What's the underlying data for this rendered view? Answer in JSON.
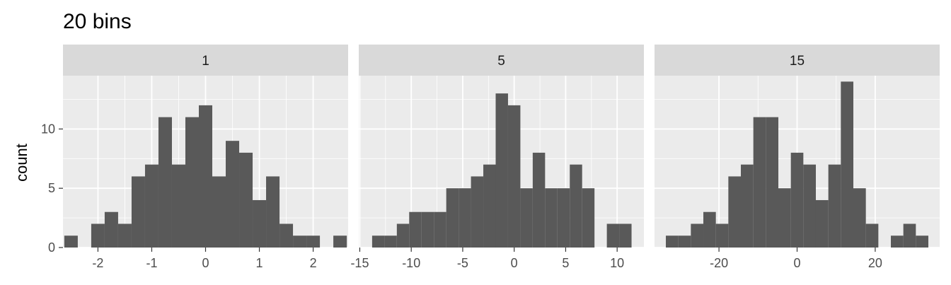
{
  "chart_data": {
    "type": "bar",
    "title": "20 bins",
    "ylabel": "count",
    "xlabel": "",
    "ylim": [
      0,
      14.5
    ],
    "y_ticks": [
      0,
      5,
      10
    ],
    "grid": true,
    "colors": {
      "bar": "#595959",
      "panel": "#ebebeb",
      "strip": "#d9d9d9",
      "grid_major": "#ffffff",
      "axis_text": "#4d4d4d",
      "tick": "#333333"
    },
    "facets": [
      {
        "label": "1",
        "xlim": [
          -2.65,
          2.65
        ],
        "x_ticks": [
          -2,
          -1,
          0,
          1,
          2
        ],
        "bin_width": 0.25,
        "bins": [
          {
            "x": -2.5,
            "count": 1
          },
          {
            "x": -2.25,
            "count": 0
          },
          {
            "x": -2.0,
            "count": 2
          },
          {
            "x": -1.75,
            "count": 3
          },
          {
            "x": -1.5,
            "count": 2
          },
          {
            "x": -1.25,
            "count": 6
          },
          {
            "x": -1.0,
            "count": 7
          },
          {
            "x": -0.75,
            "count": 11
          },
          {
            "x": -0.5,
            "count": 7
          },
          {
            "x": -0.25,
            "count": 11
          },
          {
            "x": 0.0,
            "count": 12
          },
          {
            "x": 0.25,
            "count": 6
          },
          {
            "x": 0.5,
            "count": 9
          },
          {
            "x": 0.75,
            "count": 8
          },
          {
            "x": 1.0,
            "count": 4
          },
          {
            "x": 1.25,
            "count": 6
          },
          {
            "x": 1.5,
            "count": 2
          },
          {
            "x": 1.75,
            "count": 1
          },
          {
            "x": 2.0,
            "count": 1
          },
          {
            "x": 2.25,
            "count": 0
          },
          {
            "x": 2.5,
            "count": 1
          }
        ]
      },
      {
        "label": "5",
        "xlim": [
          -15.1,
          12.6
        ],
        "x_ticks": [
          -15,
          -10,
          -5,
          0,
          5,
          10
        ],
        "bin_width": 1.2,
        "bins": [
          {
            "x": -13.2,
            "count": 1
          },
          {
            "x": -12.0,
            "count": 1
          },
          {
            "x": -10.8,
            "count": 2
          },
          {
            "x": -9.6,
            "count": 3
          },
          {
            "x": -8.4,
            "count": 3
          },
          {
            "x": -7.2,
            "count": 3
          },
          {
            "x": -6.0,
            "count": 5
          },
          {
            "x": -4.8,
            "count": 5
          },
          {
            "x": -3.6,
            "count": 6
          },
          {
            "x": -2.4,
            "count": 7
          },
          {
            "x": -1.2,
            "count": 13
          },
          {
            "x": 0.0,
            "count": 12
          },
          {
            "x": 1.2,
            "count": 5
          },
          {
            "x": 2.4,
            "count": 8
          },
          {
            "x": 3.6,
            "count": 5
          },
          {
            "x": 4.8,
            "count": 5
          },
          {
            "x": 6.0,
            "count": 7
          },
          {
            "x": 7.2,
            "count": 5
          },
          {
            "x": 8.4,
            "count": 0
          },
          {
            "x": 9.6,
            "count": 2
          },
          {
            "x": 10.8,
            "count": 2
          }
        ]
      },
      {
        "label": "15",
        "xlim": [
          -36.5,
          36.5
        ],
        "x_ticks": [
          -20,
          0,
          20
        ],
        "bin_width": 3.2,
        "bins": [
          {
            "x": -32.0,
            "count": 1
          },
          {
            "x": -28.8,
            "count": 1
          },
          {
            "x": -25.6,
            "count": 2
          },
          {
            "x": -22.4,
            "count": 3
          },
          {
            "x": -19.2,
            "count": 2
          },
          {
            "x": -16.0,
            "count": 6
          },
          {
            "x": -12.8,
            "count": 7
          },
          {
            "x": -9.6,
            "count": 11
          },
          {
            "x": -6.4,
            "count": 11
          },
          {
            "x": -3.2,
            "count": 5
          },
          {
            "x": 0.0,
            "count": 8
          },
          {
            "x": 3.2,
            "count": 7
          },
          {
            "x": 6.4,
            "count": 4
          },
          {
            "x": 9.6,
            "count": 7
          },
          {
            "x": 12.8,
            "count": 14
          },
          {
            "x": 16.0,
            "count": 5
          },
          {
            "x": 19.2,
            "count": 2
          },
          {
            "x": 22.4,
            "count": 0
          },
          {
            "x": 25.6,
            "count": 1
          },
          {
            "x": 28.8,
            "count": 2
          },
          {
            "x": 32.0,
            "count": 1
          }
        ]
      }
    ]
  }
}
